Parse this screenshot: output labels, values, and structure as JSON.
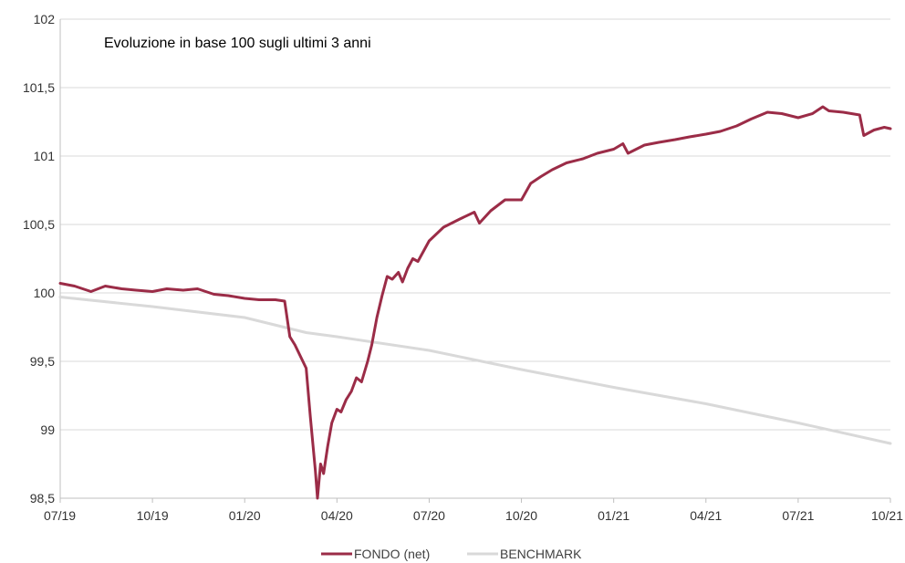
{
  "chart_data": {
    "type": "line",
    "title": "Evoluzione in base 100 sugli ultimi 3 anni",
    "xlabel": "",
    "ylabel": "",
    "ylim": [
      98.5,
      102
    ],
    "yticks": [
      98.5,
      99,
      99.5,
      100,
      100.5,
      101,
      101.5,
      102
    ],
    "ytick_labels": [
      "98,5",
      "99",
      "99,5",
      "100",
      "100,5",
      "101",
      "101,5",
      "102"
    ],
    "xlim": [
      "2019-07",
      "2021-10"
    ],
    "xtick_labels": [
      "07/19",
      "10/19",
      "01/20",
      "04/20",
      "07/20",
      "10/20",
      "01/21",
      "04/21",
      "07/21",
      "10/21"
    ],
    "grid": "horizontal",
    "legend_position": "bottom",
    "series": [
      {
        "name": "FONDO (net)",
        "color": "#9b2c47",
        "points": [
          [
            "2019-07",
            100.07
          ],
          [
            "2019-07-15",
            100.05
          ],
          [
            "2019-08",
            100.01
          ],
          [
            "2019-08-15",
            100.05
          ],
          [
            "2019-09",
            100.03
          ],
          [
            "2019-09-15",
            100.02
          ],
          [
            "2019-10",
            100.01
          ],
          [
            "2019-10-15",
            100.03
          ],
          [
            "2019-11",
            100.02
          ],
          [
            "2019-11-15",
            100.03
          ],
          [
            "2019-12",
            99.99
          ],
          [
            "2019-12-15",
            99.98
          ],
          [
            "2020-01",
            99.96
          ],
          [
            "2020-01-15",
            99.95
          ],
          [
            "2020-02",
            99.95
          ],
          [
            "2020-02-10",
            99.94
          ],
          [
            "2020-02-15",
            99.68
          ],
          [
            "2020-02-20",
            99.62
          ],
          [
            "2020-03",
            99.45
          ],
          [
            "2020-03-05",
            99.1
          ],
          [
            "2020-03-10",
            98.7
          ],
          [
            "2020-03-12",
            98.5
          ],
          [
            "2020-03-15",
            98.75
          ],
          [
            "2020-03-18",
            98.68
          ],
          [
            "2020-03-22",
            98.88
          ],
          [
            "2020-03-26",
            99.05
          ],
          [
            "2020-04",
            99.15
          ],
          [
            "2020-04-05",
            99.13
          ],
          [
            "2020-04-10",
            99.22
          ],
          [
            "2020-04-15",
            99.28
          ],
          [
            "2020-04-20",
            99.38
          ],
          [
            "2020-04-25",
            99.35
          ],
          [
            "2020-05",
            99.5
          ],
          [
            "2020-05-05",
            99.62
          ],
          [
            "2020-05-10",
            99.82
          ],
          [
            "2020-05-15",
            99.98
          ],
          [
            "2020-05-20",
            100.12
          ],
          [
            "2020-05-25",
            100.1
          ],
          [
            "2020-06",
            100.15
          ],
          [
            "2020-06-05",
            100.08
          ],
          [
            "2020-06-10",
            100.18
          ],
          [
            "2020-06-15",
            100.25
          ],
          [
            "2020-06-20",
            100.23
          ],
          [
            "2020-07",
            100.38
          ],
          [
            "2020-07-15",
            100.48
          ],
          [
            "2020-08",
            100.54
          ],
          [
            "2020-08-15",
            100.59
          ],
          [
            "2020-08-20",
            100.51
          ],
          [
            "2020-09",
            100.6
          ],
          [
            "2020-09-15",
            100.68
          ],
          [
            "2020-10",
            100.68
          ],
          [
            "2020-10-10",
            100.8
          ],
          [
            "2020-10-20",
            100.85
          ],
          [
            "2020-11",
            100.9
          ],
          [
            "2020-11-15",
            100.95
          ],
          [
            "2020-12",
            100.98
          ],
          [
            "2020-12-15",
            101.02
          ],
          [
            "2021-01",
            101.05
          ],
          [
            "2021-01-10",
            101.09
          ],
          [
            "2021-01-15",
            101.02
          ],
          [
            "2021-02",
            101.08
          ],
          [
            "2021-02-15",
            101.1
          ],
          [
            "2021-03",
            101.12
          ],
          [
            "2021-03-15",
            101.14
          ],
          [
            "2021-04",
            101.16
          ],
          [
            "2021-04-15",
            101.18
          ],
          [
            "2021-05",
            101.22
          ],
          [
            "2021-05-15",
            101.27
          ],
          [
            "2021-06",
            101.32
          ],
          [
            "2021-06-15",
            101.31
          ],
          [
            "2021-07",
            101.28
          ],
          [
            "2021-07-15",
            101.31
          ],
          [
            "2021-07-25",
            101.36
          ],
          [
            "2021-08",
            101.33
          ],
          [
            "2021-08-15",
            101.32
          ],
          [
            "2021-09",
            101.3
          ],
          [
            "2021-09-05",
            101.15
          ],
          [
            "2021-09-15",
            101.19
          ],
          [
            "2021-09-25",
            101.21
          ],
          [
            "2021-10",
            101.2
          ]
        ]
      },
      {
        "name": "BENCHMARK",
        "color": "#d9d9d9",
        "points": [
          [
            "2019-07",
            99.97
          ],
          [
            "2019-10",
            99.9
          ],
          [
            "2020-01",
            99.82
          ],
          [
            "2020-03",
            99.71
          ],
          [
            "2020-04",
            99.68
          ],
          [
            "2020-07",
            99.58
          ],
          [
            "2020-10",
            99.44
          ],
          [
            "2021-01",
            99.31
          ],
          [
            "2021-04",
            99.19
          ],
          [
            "2021-07",
            99.05
          ],
          [
            "2021-10",
            98.9
          ]
        ]
      }
    ]
  }
}
